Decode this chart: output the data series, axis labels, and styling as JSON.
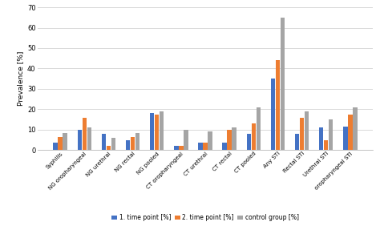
{
  "categories": [
    "Syphilis",
    "NG oropharyngeal",
    "NG urethral",
    "NG rectal",
    "NG pooled",
    "CT oropharyngeal",
    "CT urethral",
    "CT rectal",
    "CT pooled",
    "Any STI",
    "Rectal STI",
    "Urethral STI",
    "oropharyngeal STI"
  ],
  "series": {
    "1. time point [%]": [
      3.5,
      10.0,
      8.0,
      5.0,
      18.0,
      2.0,
      3.5,
      3.5,
      8.0,
      35.0,
      8.0,
      11.0,
      11.5
    ],
    "2. time point [%]": [
      6.5,
      16.0,
      2.0,
      6.5,
      17.5,
      2.0,
      3.5,
      10.0,
      13.0,
      44.0,
      16.0,
      5.0,
      17.5
    ],
    "control group [%]": [
      8.5,
      11.0,
      6.0,
      8.5,
      19.0,
      10.0,
      9.0,
      11.0,
      21.0,
      65.0,
      19.0,
      15.0,
      21.0
    ]
  },
  "colors": {
    "1. time point [%]": "#4472C4",
    "2. time point [%]": "#ED7D31",
    "control group [%]": "#A5A5A5"
  },
  "ylabel": "Prevalence [%]",
  "ylim": [
    0,
    70
  ],
  "yticks": [
    0,
    10,
    20,
    30,
    40,
    50,
    60,
    70
  ],
  "legend_labels": [
    "1. time point [%]",
    "2. time point [%]",
    "control group [%]"
  ],
  "background_color": "#FFFFFF",
  "grid_color": "#D9D9D9"
}
